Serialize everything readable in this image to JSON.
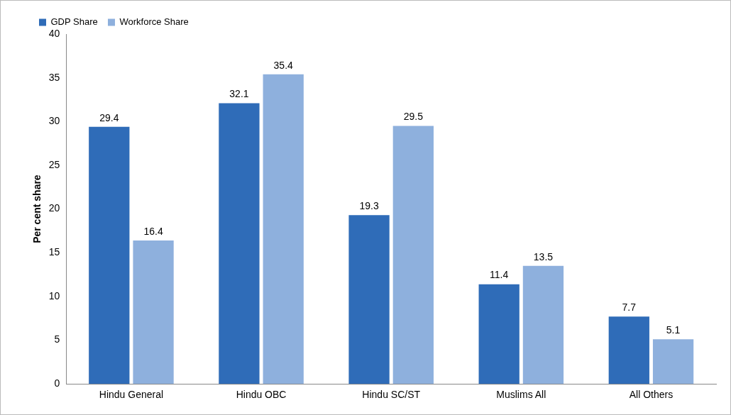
{
  "chart_data": {
    "type": "bar",
    "ylabel": "Per cent share",
    "categories": [
      "Hindu General",
      "Hindu OBC",
      "Hindu SC/ST",
      "Muslims All",
      "All Others"
    ],
    "series": [
      {
        "name": "GDP Share",
        "color": "#2f6cb8",
        "values": [
          29.4,
          32.1,
          19.3,
          11.4,
          7.7
        ]
      },
      {
        "name": "Workforce Share",
        "color": "#8eb0dd",
        "values": [
          16.4,
          35.4,
          29.5,
          13.5,
          5.1
        ]
      }
    ],
    "ylim": [
      0,
      40
    ],
    "yticks": [
      0,
      5,
      10,
      15,
      20,
      25,
      30,
      35,
      40
    ],
    "grid": false,
    "legend": "top left",
    "data_labels": true
  }
}
